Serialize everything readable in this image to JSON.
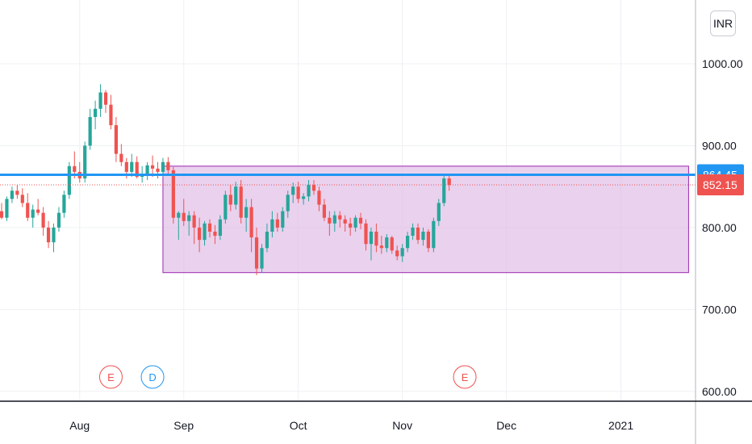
{
  "currency_label": "INR",
  "chart_data": {
    "type": "candlestick",
    "y_ticks": [
      "1000.00",
      "900.00",
      "800.00",
      "700.00",
      "600.00"
    ],
    "y_tick_values": [
      1000,
      900,
      800,
      700,
      600
    ],
    "x_labels": [
      "Aug",
      "Sep",
      "Oct",
      "Nov",
      "Dec",
      "2021"
    ],
    "ylim": [
      588,
      1068
    ],
    "colors": {
      "up": "#26a69a",
      "down": "#ef5350",
      "rect_fill": "#e1bee7",
      "rect_stroke": "#9c27b0",
      "hline": "#2196f3",
      "price_line": "#ef5350"
    },
    "horizontal_line": {
      "value": 864.45,
      "label": "864.45"
    },
    "last_price": {
      "value": 852.15,
      "label": "852.15"
    },
    "range_box": {
      "start_index": 31,
      "end_index": 132,
      "top": 875,
      "bottom": 745
    },
    "events": [
      {
        "label": "E",
        "index": 21,
        "color": "#ef5350"
      },
      {
        "label": "D",
        "index": 29,
        "color": "#2196f3"
      },
      {
        "label": "E",
        "index": 89,
        "color": "#ef5350"
      }
    ],
    "candles": [
      [
        820,
        830,
        810,
        812
      ],
      [
        812,
        838,
        808,
        835
      ],
      [
        835,
        850,
        830,
        845
      ],
      [
        845,
        852,
        835,
        840
      ],
      [
        840,
        848,
        825,
        830
      ],
      [
        830,
        842,
        808,
        812
      ],
      [
        812,
        828,
        800,
        822
      ],
      [
        822,
        835,
        815,
        818
      ],
      [
        818,
        825,
        790,
        800
      ],
      [
        800,
        808,
        775,
        782
      ],
      [
        782,
        805,
        770,
        800
      ],
      [
        800,
        825,
        795,
        818
      ],
      [
        818,
        845,
        812,
        840
      ],
      [
        840,
        880,
        835,
        875
      ],
      [
        875,
        893,
        860,
        868
      ],
      [
        868,
        880,
        855,
        860
      ],
      [
        860,
        905,
        855,
        900
      ],
      [
        900,
        945,
        895,
        935
      ],
      [
        935,
        955,
        920,
        945
      ],
      [
        945,
        975,
        935,
        965
      ],
      [
        965,
        968,
        940,
        950
      ],
      [
        950,
        962,
        920,
        925
      ],
      [
        925,
        935,
        880,
        890
      ],
      [
        890,
        902,
        875,
        880
      ],
      [
        880,
        885,
        860,
        868
      ],
      [
        868,
        890,
        862,
        880
      ],
      [
        880,
        887,
        860,
        862
      ],
      [
        862,
        875,
        855,
        865
      ],
      [
        865,
        880,
        858,
        876
      ],
      [
        876,
        888,
        862,
        872
      ],
      [
        872,
        880,
        860,
        868
      ],
      [
        868,
        885,
        862,
        880
      ],
      [
        880,
        886,
        865,
        870
      ],
      [
        870,
        874,
        805,
        812
      ],
      [
        812,
        820,
        785,
        818
      ],
      [
        818,
        835,
        802,
        808
      ],
      [
        808,
        820,
        790,
        815
      ],
      [
        815,
        820,
        780,
        800
      ],
      [
        800,
        812,
        770,
        785
      ],
      [
        785,
        808,
        778,
        805
      ],
      [
        805,
        810,
        788,
        795
      ],
      [
        795,
        803,
        780,
        790
      ],
      [
        790,
        815,
        785,
        810
      ],
      [
        810,
        845,
        805,
        840
      ],
      [
        840,
        852,
        820,
        828
      ],
      [
        828,
        856,
        822,
        850
      ],
      [
        850,
        858,
        805,
        812
      ],
      [
        812,
        835,
        795,
        825
      ],
      [
        825,
        835,
        770,
        788
      ],
      [
        788,
        800,
        742,
        750
      ],
      [
        750,
        780,
        745,
        775
      ],
      [
        775,
        805,
        770,
        795
      ],
      [
        795,
        820,
        788,
        810
      ],
      [
        810,
        818,
        795,
        800
      ],
      [
        800,
        825,
        795,
        820
      ],
      [
        820,
        845,
        812,
        840
      ],
      [
        840,
        855,
        830,
        850
      ],
      [
        850,
        856,
        830,
        835
      ],
      [
        835,
        842,
        828,
        838
      ],
      [
        838,
        858,
        832,
        852
      ],
      [
        852,
        858,
        840,
        845
      ],
      [
        845,
        850,
        820,
        828
      ],
      [
        828,
        835,
        808,
        812
      ],
      [
        812,
        820,
        790,
        805
      ],
      [
        805,
        820,
        795,
        815
      ],
      [
        815,
        820,
        800,
        810
      ],
      [
        810,
        815,
        795,
        805
      ],
      [
        805,
        812,
        790,
        800
      ],
      [
        800,
        815,
        795,
        812
      ],
      [
        812,
        818,
        798,
        805
      ],
      [
        805,
        810,
        772,
        780
      ],
      [
        780,
        800,
        760,
        795
      ],
      [
        795,
        805,
        770,
        778
      ],
      [
        778,
        790,
        768,
        775
      ],
      [
        775,
        792,
        770,
        788
      ],
      [
        788,
        790,
        768,
        772
      ],
      [
        772,
        778,
        760,
        765
      ],
      [
        765,
        780,
        758,
        775
      ],
      [
        775,
        795,
        770,
        790
      ],
      [
        790,
        805,
        785,
        800
      ],
      [
        800,
        805,
        780,
        785
      ],
      [
        785,
        800,
        778,
        795
      ],
      [
        795,
        798,
        770,
        775
      ],
      [
        775,
        812,
        770,
        808
      ],
      [
        808,
        835,
        802,
        830
      ],
      [
        830,
        865,
        826,
        860
      ],
      [
        860,
        866,
        845,
        852
      ]
    ]
  }
}
